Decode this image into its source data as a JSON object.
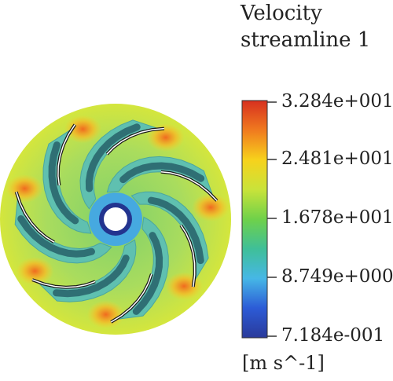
{
  "legend": {
    "title_line1": "Velocity",
    "title_line2": "streamline 1",
    "ticks": [
      "3.284e+001",
      "2.481e+001",
      "1.678e+001",
      "8.749e+000",
      "7.184e-001"
    ],
    "unit": "[m s^-1]"
  },
  "colormap": [
    "#d7301f",
    "#f07a1f",
    "#f7d21c",
    "#c9e33a",
    "#6fd14a",
    "#3fbf98",
    "#46b7e6",
    "#2c5bd6",
    "#2a3a9a"
  ],
  "impeller": {
    "blade_count": 7,
    "colors": {
      "ambient": "#bfe36a",
      "blade": "#5fc0b0",
      "blade_dark": "#2f6f74",
      "hub_ring": "#1e2e8c",
      "hot_spot": "#f07a1f"
    }
  }
}
